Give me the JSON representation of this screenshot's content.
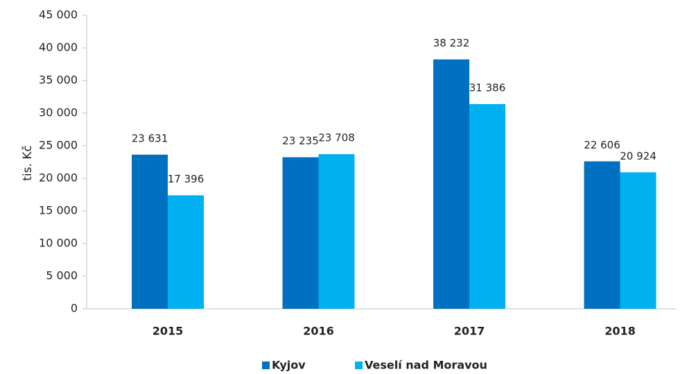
{
  "chart_data": {
    "type": "bar",
    "y_label": "tis. Kč",
    "categories": [
      "2015",
      "2016",
      "2017",
      "2018"
    ],
    "series": [
      {
        "name": "Kyjov",
        "color": "#0070c0",
        "values": [
          23631,
          23235,
          38232,
          22606
        ],
        "value_labels": [
          "23 631",
          "23 235",
          "38 232",
          "22 606"
        ]
      },
      {
        "name": "Veselí nad Moravou",
        "color": "#00b0f0",
        "values": [
          17396,
          23708,
          31386,
          20924
        ],
        "value_labels": [
          "17 396",
          "23 708",
          "31 386",
          "20 924"
        ]
      }
    ],
    "ylim": [
      0,
      45000
    ],
    "yticks": [
      0,
      {
        "value": 5000,
        "label": "5 000"
      },
      {
        "value": 10000,
        "label": "10 000"
      },
      {
        "value": 15000,
        "label": "15 000"
      },
      {
        "value": 20000,
        "label": "20 000"
      },
      {
        "value": 25000,
        "label": "25 000"
      },
      {
        "value": 30000,
        "label": "30 000"
      },
      {
        "value": 35000,
        "label": "35 000"
      },
      {
        "value": 40000,
        "label": "40 000"
      },
      {
        "value": 45000,
        "label": "45 000"
      }
    ],
    "grid": false,
    "legend": "bottom"
  }
}
